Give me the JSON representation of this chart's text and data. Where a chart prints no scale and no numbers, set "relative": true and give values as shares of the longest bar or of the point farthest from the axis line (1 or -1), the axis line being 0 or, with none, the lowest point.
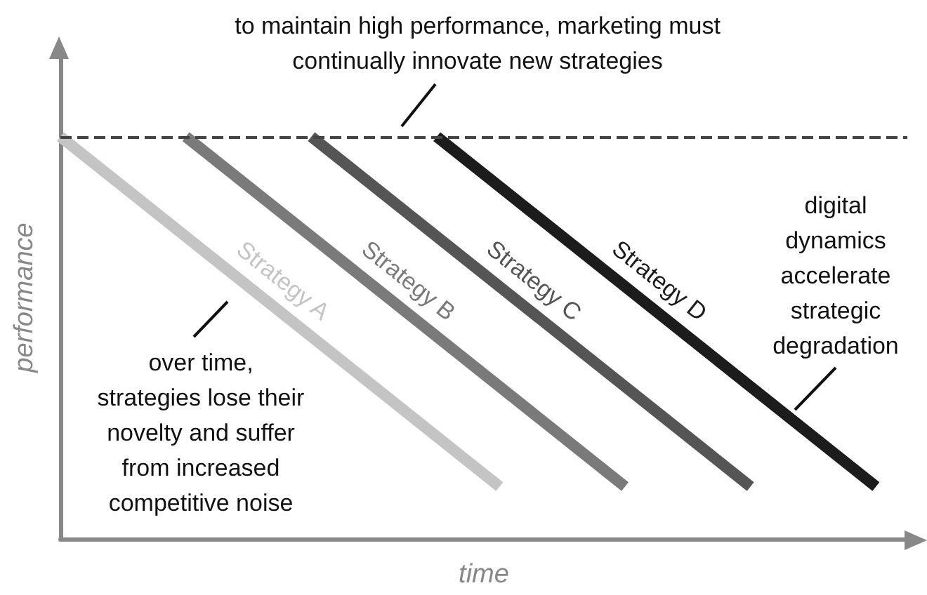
{
  "chart_data": {
    "type": "line",
    "relative": true,
    "xlabel": "time",
    "ylabel": "performance",
    "categories": [
      null,
      null,
      null,
      null,
      null,
      null,
      null,
      null,
      null,
      null,
      null,
      null,
      null,
      null,
      null,
      null,
      null,
      null,
      null,
      null,
      null,
      null,
      null,
      null,
      null,
      null,
      null,
      null
    ],
    "series": [
      {
        "name": "Strategy A",
        "color": "#c4c4c4",
        "values": [
          1,
          null,
          null,
          null,
          null,
          null,
          null,
          null,
          null,
          null,
          null,
          null,
          null,
          null,
          0.13,
          null,
          null,
          null,
          null,
          null,
          null,
          null,
          null,
          null,
          null,
          null,
          null,
          null
        ]
      },
      {
        "name": "Strategy B",
        "color": "#7a7a7a",
        "values": [
          null,
          null,
          null,
          null,
          1,
          null,
          null,
          null,
          null,
          null,
          null,
          null,
          null,
          null,
          null,
          null,
          null,
          null,
          0.13,
          null,
          null,
          null,
          null,
          null,
          null,
          null,
          null,
          null
        ]
      },
      {
        "name": "Strategy C",
        "color": "#555555",
        "values": [
          null,
          null,
          null,
          null,
          null,
          null,
          null,
          null,
          1,
          null,
          null,
          null,
          null,
          null,
          null,
          null,
          null,
          null,
          null,
          null,
          null,
          null,
          0.13,
          null,
          null,
          null,
          null,
          null
        ]
      },
      {
        "name": "Strategy D",
        "color": "#1c1c1c",
        "values": [
          null,
          null,
          null,
          null,
          null,
          null,
          null,
          null,
          null,
          null,
          null,
          null,
          1,
          null,
          null,
          null,
          null,
          null,
          null,
          null,
          null,
          null,
          null,
          null,
          null,
          null,
          0.13,
          null
        ]
      }
    ],
    "ref_lines": [
      {
        "axis": "y",
        "value": 1,
        "color": "#444444",
        "line_style": "dashed"
      }
    ],
    "annotations": [
      "to maintain high performance, marketing must\ncontinually innovate new strategies",
      "over time,\nstrategies lose their\nnovelty and suffer\nfrom increased\ncompetitive noise",
      "digital\ndynamics\naccelerate\nstrategic\ndegradation"
    ],
    "legend": false,
    "grid": false,
    "marker": "none",
    "line_style": "solid"
  }
}
